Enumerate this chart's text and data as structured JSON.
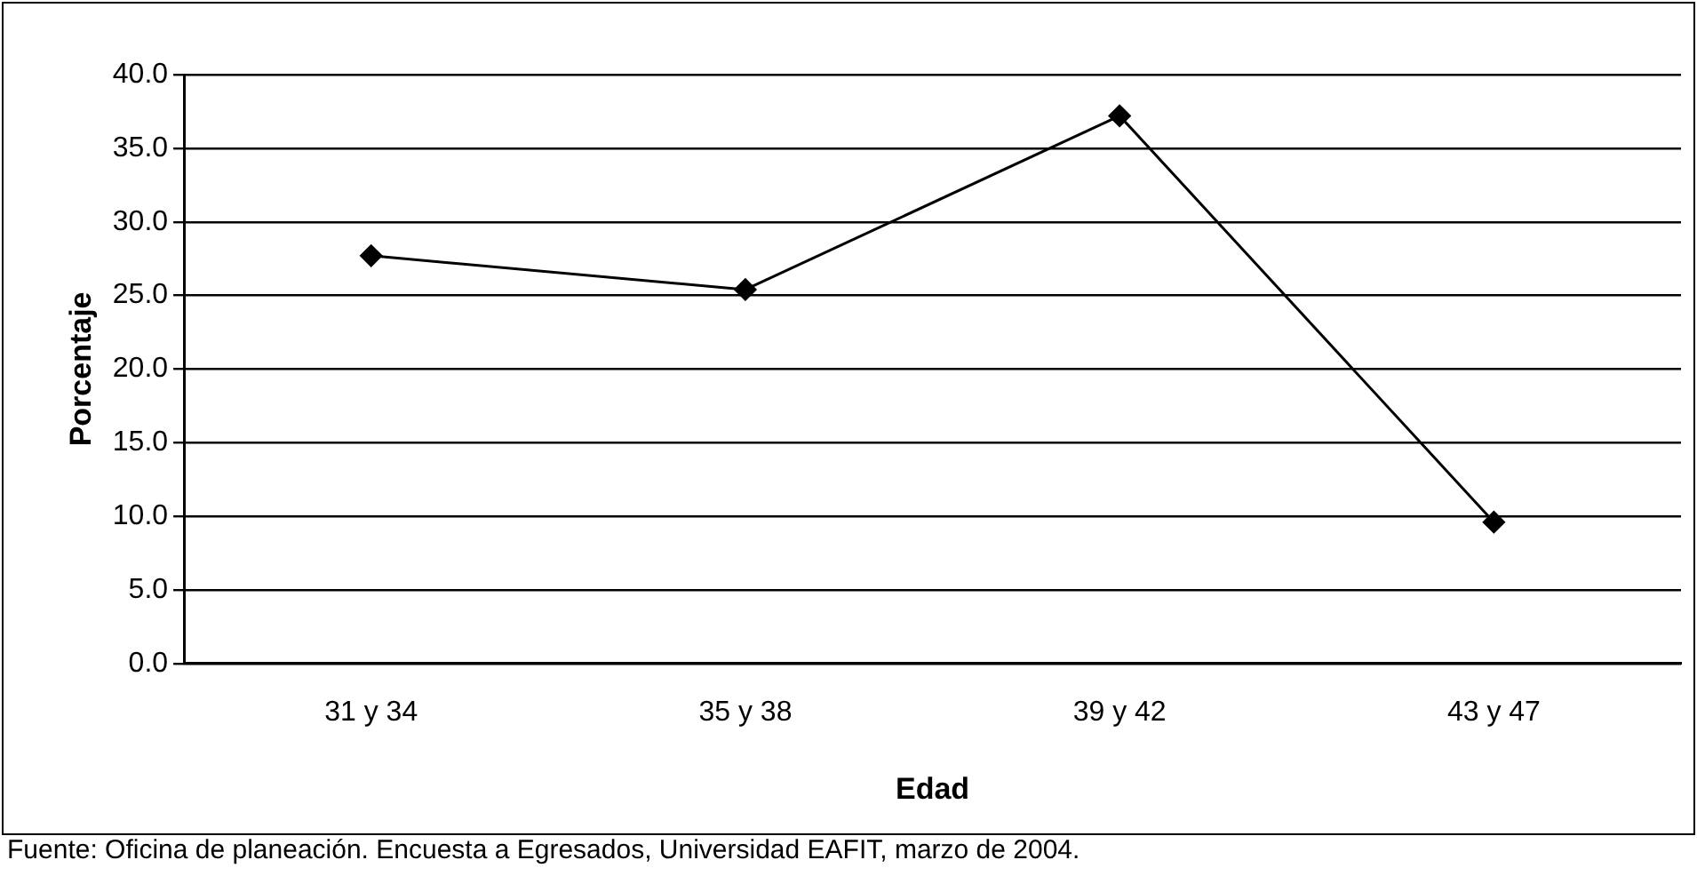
{
  "chart_data": {
    "type": "line",
    "xlabel": "Edad",
    "ylabel": "Porcentaje",
    "categories": [
      "31 y 34",
      "35 y 38",
      "39 y 42",
      "43 y 47"
    ],
    "series": [
      {
        "color": "#000000",
        "values": [
          27.7,
          25.4,
          37.2,
          9.6
        ]
      }
    ],
    "ylim": [
      0,
      40
    ],
    "yticks": [
      {
        "value": 0,
        "label": "0.0"
      },
      {
        "value": 5,
        "label": "5.0"
      },
      {
        "value": 10,
        "label": "10.0"
      },
      {
        "value": 15,
        "label": "15.0"
      },
      {
        "value": 20,
        "label": "20.0"
      },
      {
        "value": 25,
        "label": "25.0"
      },
      {
        "value": 30,
        "label": "30.0"
      },
      {
        "value": 35,
        "label": "35.0"
      },
      {
        "value": 40,
        "label": "40.0"
      }
    ],
    "grid": "y",
    "legend": false,
    "marker": "diamond",
    "line_style": "solid",
    "annotations": [
      "Fuente: Oficina de planeación. Encuesta a Egresados, Universidad EAFIT, marzo de 2004."
    ]
  }
}
